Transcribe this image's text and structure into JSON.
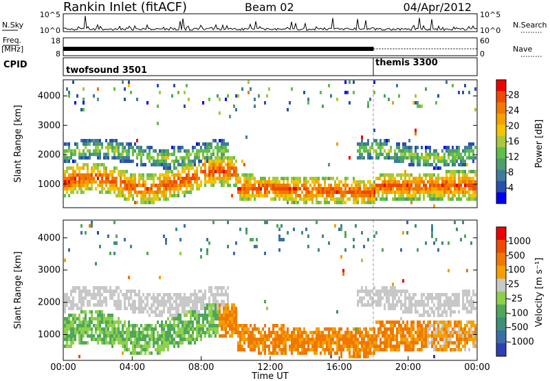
{
  "header": {
    "title": "Rankin Inlet (fitACF)",
    "beam": "Beam 02",
    "date": "04/Apr/2012"
  },
  "panels": {
    "nsky_label": "N.Sky",
    "nsky_ticks": [
      "10^5",
      "10^0"
    ],
    "nsearch_label": "N.Search",
    "nsearch_ticks": [
      "10^5",
      "10^0"
    ],
    "freq_label": "Freq.",
    "freq_unit": "[MHz]",
    "freq_ticks": [
      "18",
      "8"
    ],
    "nave_label": "Nave",
    "nave_ticks": [
      "60",
      "0"
    ],
    "cpid_label": "CPID",
    "programs": [
      {
        "name": "twofsound 3501",
        "start_hour": 0,
        "end_hour": 18
      },
      {
        "name": "themis 3300",
        "start_hour": 18,
        "end_hour": 24
      }
    ]
  },
  "chart_data": [
    {
      "type": "heatmap",
      "name": "power",
      "ylabel": "Slant Range [km]",
      "yticks": [
        "1000",
        "2000",
        "3000",
        "4000"
      ],
      "ylim": [
        200,
        4550
      ],
      "colorbar_label": "Power [dB]",
      "colorbar_ticks": [
        "28",
        "24",
        "20",
        "16",
        "12",
        "8",
        "4"
      ],
      "colorscale": [
        "#0000f5",
        "#2a4fb0",
        "#3f7c9a",
        "#4f9e6e",
        "#5fbf4a",
        "#a9c83a",
        "#f5c400",
        "#f5a000",
        "#f07800",
        "#f04a00",
        "#ee0000"
      ]
    },
    {
      "type": "heatmap",
      "name": "velocity",
      "ylabel": "Slant Range [km]",
      "yticks": [
        "1000",
        "2000",
        "3000",
        "4000"
      ],
      "ylim": [
        200,
        4550
      ],
      "colorbar_label": "Velocity [m s⁻¹]",
      "colorbar_ticks": [
        "1000",
        "500",
        "100",
        "25",
        "-25",
        "-100",
        "-500",
        "-1000"
      ],
      "colorscale": [
        "#2a3fb8",
        "#3a6ea8",
        "#3f8f7a",
        "#4fa85a",
        "#8ed04a",
        "#c8c8c8",
        "#f5a000",
        "#f07800",
        "#f04a00",
        "#ee0000"
      ]
    }
  ],
  "xaxis": {
    "label": "Time UT",
    "ticks": [
      "00:00",
      "04:00",
      "08:00",
      "12:00",
      "16:00",
      "20:00",
      "00:00"
    ],
    "range_hours": [
      0,
      24
    ]
  },
  "colors": {
    "axis": "#000000",
    "power_scale": [
      "#0000f5",
      "#2a4fb0",
      "#3f7c9a",
      "#4f9e6e",
      "#5fbf4a",
      "#a9c83a",
      "#f5c400",
      "#f5a000",
      "#f07800",
      "#f04a00",
      "#ee0000"
    ],
    "velocity_scale": [
      "#2a3fb8",
      "#3a6ea8",
      "#3f8f7a",
      "#4fa85a",
      "#8ed04a",
      "#c8c8c8",
      "#f5a000",
      "#f07800",
      "#f04a00",
      "#ee0000"
    ]
  }
}
